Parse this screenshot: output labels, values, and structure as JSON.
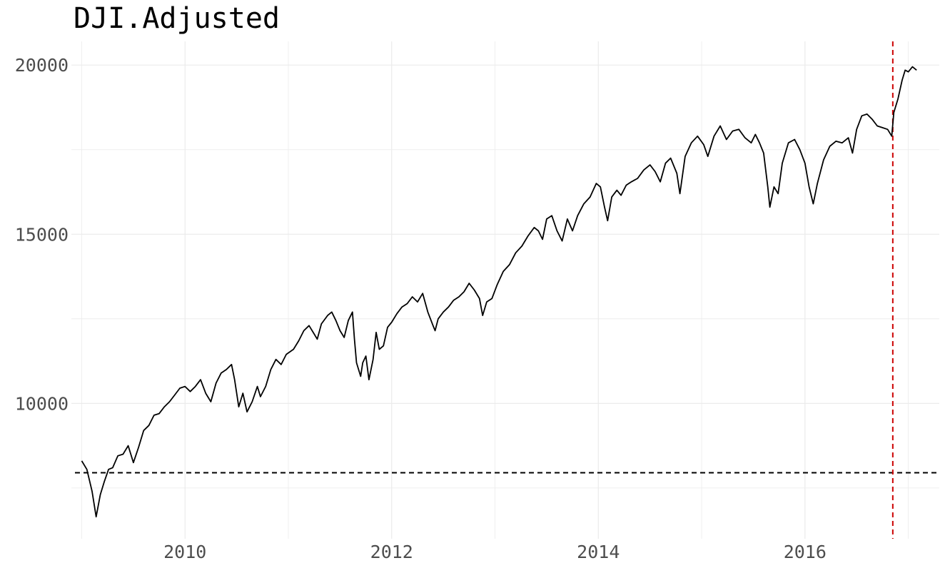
{
  "chart_data": {
    "type": "line",
    "title": "DJI.Adjusted",
    "xlabel": "",
    "ylabel": "",
    "xlim": [
      2008.9,
      2017.3
    ],
    "ylim": [
      6000,
      20700
    ],
    "x_ticks": [
      2010,
      2012,
      2014,
      2016
    ],
    "x_tick_labels": [
      "2010",
      "2012",
      "2014",
      "2016"
    ],
    "y_ticks": [
      10000,
      15000,
      20000
    ],
    "y_tick_labels": [
      "10000",
      "15000",
      "20000"
    ],
    "grid": true,
    "legend": "none",
    "colors": {
      "line": "#000000",
      "hline": "#000000",
      "vline": "#cc0000",
      "grid": "#ebebeb"
    },
    "reference_lines": [
      {
        "orientation": "horizontal",
        "value": 7950,
        "style": "dashed",
        "color": "#000000"
      },
      {
        "orientation": "vertical",
        "value": 2016.85,
        "style": "dashed",
        "color": "#cc0000"
      }
    ],
    "series": [
      {
        "values": [
          [
            2009.0,
            8300
          ],
          [
            2009.05,
            8050
          ],
          [
            2009.1,
            7400
          ],
          [
            2009.14,
            6650
          ],
          [
            2009.18,
            7300
          ],
          [
            2009.22,
            7700
          ],
          [
            2009.26,
            8050
          ],
          [
            2009.3,
            8100
          ],
          [
            2009.35,
            8450
          ],
          [
            2009.4,
            8500
          ],
          [
            2009.45,
            8750
          ],
          [
            2009.5,
            8250
          ],
          [
            2009.55,
            8700
          ],
          [
            2009.6,
            9200
          ],
          [
            2009.65,
            9350
          ],
          [
            2009.7,
            9650
          ],
          [
            2009.75,
            9700
          ],
          [
            2009.8,
            9900
          ],
          [
            2009.85,
            10050
          ],
          [
            2009.9,
            10250
          ],
          [
            2009.95,
            10450
          ],
          [
            2010.0,
            10500
          ],
          [
            2010.05,
            10350
          ],
          [
            2010.1,
            10500
          ],
          [
            2010.15,
            10700
          ],
          [
            2010.2,
            10300
          ],
          [
            2010.25,
            10050
          ],
          [
            2010.3,
            10600
          ],
          [
            2010.35,
            10900
          ],
          [
            2010.4,
            11000
          ],
          [
            2010.45,
            11150
          ],
          [
            2010.48,
            10700
          ],
          [
            2010.52,
            9900
          ],
          [
            2010.56,
            10300
          ],
          [
            2010.6,
            9750
          ],
          [
            2010.65,
            10050
          ],
          [
            2010.7,
            10500
          ],
          [
            2010.73,
            10200
          ],
          [
            2010.78,
            10500
          ],
          [
            2010.83,
            11000
          ],
          [
            2010.88,
            11300
          ],
          [
            2010.93,
            11150
          ],
          [
            2010.98,
            11450
          ],
          [
            2011.05,
            11600
          ],
          [
            2011.1,
            11850
          ],
          [
            2011.15,
            12150
          ],
          [
            2011.2,
            12300
          ],
          [
            2011.25,
            12050
          ],
          [
            2011.28,
            11900
          ],
          [
            2011.32,
            12350
          ],
          [
            2011.38,
            12600
          ],
          [
            2011.42,
            12700
          ],
          [
            2011.46,
            12450
          ],
          [
            2011.5,
            12150
          ],
          [
            2011.54,
            11950
          ],
          [
            2011.58,
            12450
          ],
          [
            2011.62,
            12700
          ],
          [
            2011.64,
            11900
          ],
          [
            2011.66,
            11200
          ],
          [
            2011.7,
            10800
          ],
          [
            2011.72,
            11200
          ],
          [
            2011.75,
            11400
          ],
          [
            2011.78,
            10700
          ],
          [
            2011.82,
            11300
          ],
          [
            2011.85,
            12100
          ],
          [
            2011.88,
            11600
          ],
          [
            2011.92,
            11700
          ],
          [
            2011.96,
            12250
          ],
          [
            2012.0,
            12400
          ],
          [
            2012.05,
            12650
          ],
          [
            2012.1,
            12850
          ],
          [
            2012.15,
            12950
          ],
          [
            2012.2,
            13150
          ],
          [
            2012.25,
            13000
          ],
          [
            2012.3,
            13250
          ],
          [
            2012.35,
            12700
          ],
          [
            2012.4,
            12300
          ],
          [
            2012.42,
            12150
          ],
          [
            2012.45,
            12500
          ],
          [
            2012.5,
            12700
          ],
          [
            2012.55,
            12850
          ],
          [
            2012.6,
            13050
          ],
          [
            2012.65,
            13150
          ],
          [
            2012.7,
            13300
          ],
          [
            2012.75,
            13550
          ],
          [
            2012.8,
            13350
          ],
          [
            2012.85,
            13100
          ],
          [
            2012.88,
            12600
          ],
          [
            2012.92,
            13000
          ],
          [
            2012.97,
            13100
          ],
          [
            2013.02,
            13500
          ],
          [
            2013.08,
            13900
          ],
          [
            2013.14,
            14100
          ],
          [
            2013.2,
            14450
          ],
          [
            2013.26,
            14650
          ],
          [
            2013.32,
            14950
          ],
          [
            2013.38,
            15200
          ],
          [
            2013.42,
            15100
          ],
          [
            2013.46,
            14850
          ],
          [
            2013.5,
            15450
          ],
          [
            2013.55,
            15550
          ],
          [
            2013.6,
            15100
          ],
          [
            2013.65,
            14800
          ],
          [
            2013.7,
            15450
          ],
          [
            2013.75,
            15100
          ],
          [
            2013.8,
            15550
          ],
          [
            2013.86,
            15900
          ],
          [
            2013.92,
            16100
          ],
          [
            2013.98,
            16500
          ],
          [
            2014.02,
            16400
          ],
          [
            2014.06,
            15800
          ],
          [
            2014.09,
            15400
          ],
          [
            2014.13,
            16100
          ],
          [
            2014.18,
            16300
          ],
          [
            2014.22,
            16150
          ],
          [
            2014.27,
            16450
          ],
          [
            2014.32,
            16550
          ],
          [
            2014.38,
            16650
          ],
          [
            2014.44,
            16900
          ],
          [
            2014.5,
            17050
          ],
          [
            2014.55,
            16850
          ],
          [
            2014.6,
            16550
          ],
          [
            2014.65,
            17100
          ],
          [
            2014.7,
            17250
          ],
          [
            2014.76,
            16800
          ],
          [
            2014.79,
            16200
          ],
          [
            2014.84,
            17300
          ],
          [
            2014.9,
            17700
          ],
          [
            2014.96,
            17900
          ],
          [
            2015.02,
            17650
          ],
          [
            2015.06,
            17300
          ],
          [
            2015.12,
            17900
          ],
          [
            2015.18,
            18200
          ],
          [
            2015.24,
            17800
          ],
          [
            2015.3,
            18050
          ],
          [
            2015.36,
            18100
          ],
          [
            2015.42,
            17850
          ],
          [
            2015.48,
            17700
          ],
          [
            2015.52,
            17950
          ],
          [
            2015.56,
            17700
          ],
          [
            2015.6,
            17400
          ],
          [
            2015.64,
            16400
          ],
          [
            2015.66,
            15800
          ],
          [
            2015.7,
            16400
          ],
          [
            2015.74,
            16200
          ],
          [
            2015.78,
            17100
          ],
          [
            2015.84,
            17700
          ],
          [
            2015.9,
            17800
          ],
          [
            2015.95,
            17500
          ],
          [
            2016.0,
            17100
          ],
          [
            2016.04,
            16400
          ],
          [
            2016.08,
            15900
          ],
          [
            2016.12,
            16500
          ],
          [
            2016.18,
            17200
          ],
          [
            2016.24,
            17600
          ],
          [
            2016.3,
            17750
          ],
          [
            2016.36,
            17700
          ],
          [
            2016.42,
            17850
          ],
          [
            2016.46,
            17400
          ],
          [
            2016.5,
            18100
          ],
          [
            2016.55,
            18500
          ],
          [
            2016.6,
            18550
          ],
          [
            2016.65,
            18400
          ],
          [
            2016.7,
            18200
          ],
          [
            2016.75,
            18150
          ],
          [
            2016.8,
            18100
          ],
          [
            2016.84,
            17900
          ],
          [
            2016.86,
            18600
          ],
          [
            2016.9,
            19000
          ],
          [
            2016.94,
            19550
          ],
          [
            2016.97,
            19850
          ],
          [
            2017.0,
            19800
          ],
          [
            2017.04,
            19950
          ],
          [
            2017.08,
            19850
          ]
        ]
      }
    ]
  }
}
